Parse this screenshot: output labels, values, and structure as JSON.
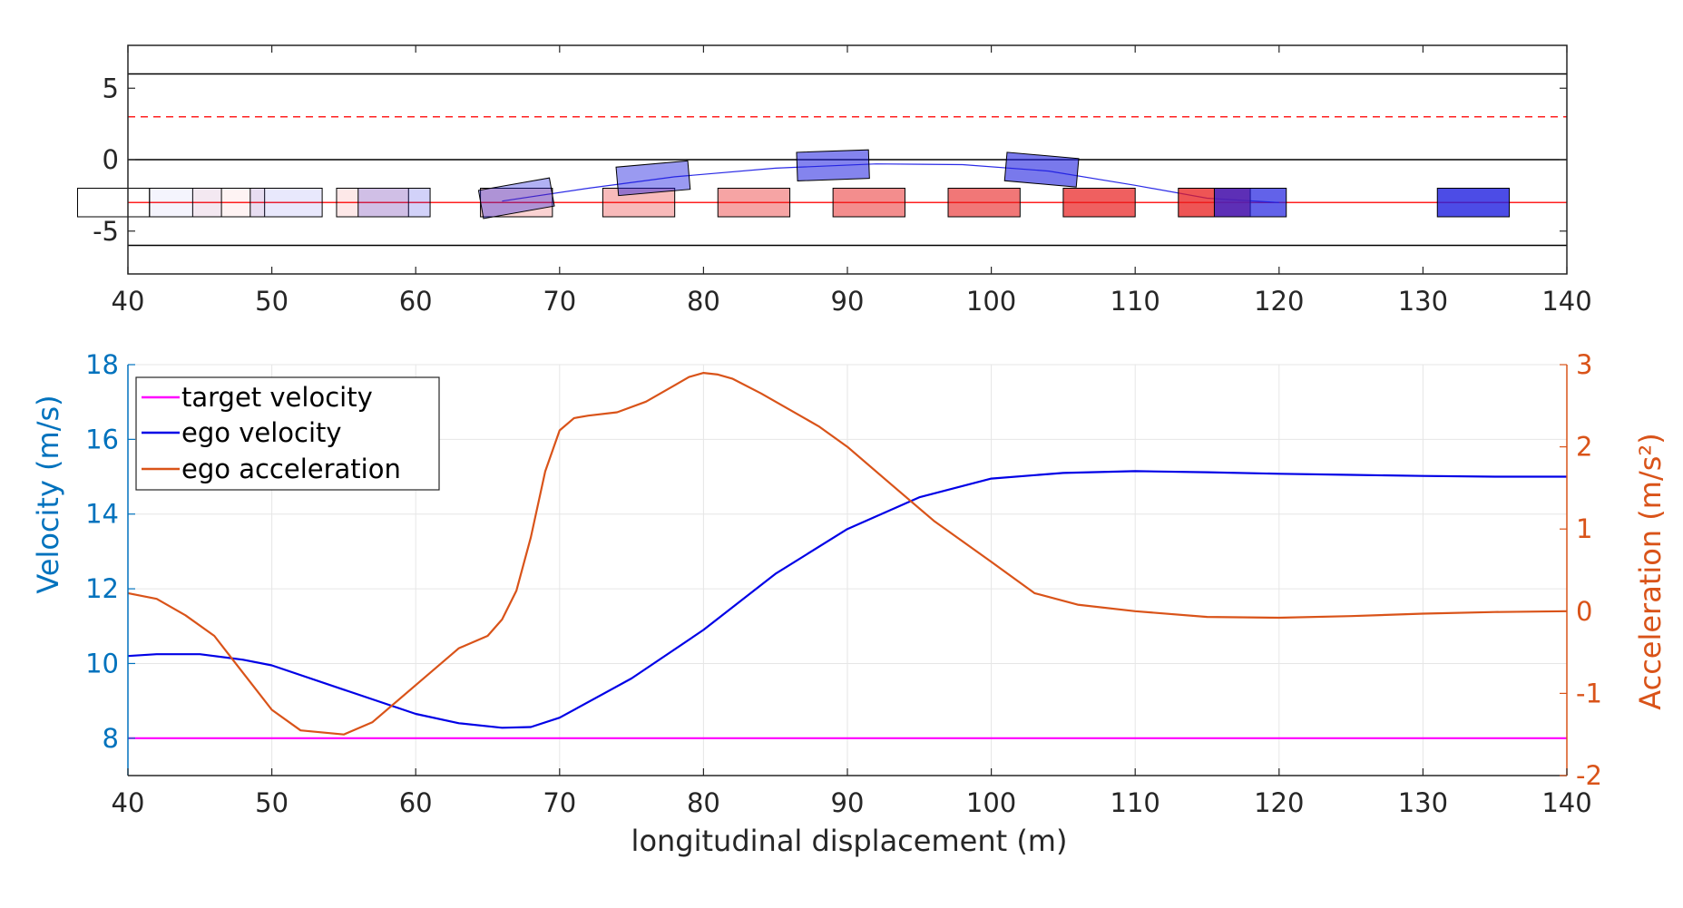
{
  "chart_data": [
    {
      "type": "scatter",
      "xlim": [
        40,
        140
      ],
      "ylim": [
        -8,
        8
      ],
      "x_ticks": [
        40,
        50,
        60,
        70,
        80,
        90,
        100,
        110,
        120,
        130,
        140
      ],
      "y_ticks": [
        -5,
        0,
        5
      ],
      "x_tick_labels": [
        "40",
        "50",
        "60",
        "70",
        "80",
        "90",
        "100",
        "110",
        "120",
        "130",
        "140"
      ],
      "y_tick_labels": [
        "-5",
        "0",
        "5"
      ],
      "grid": false,
      "road_boundaries": [
        -6,
        0,
        6
      ],
      "target_lane_y": -3,
      "reference_dashed_y": 3,
      "ego_path": [
        [
          66,
          -2.9
        ],
        [
          72,
          -2.0
        ],
        [
          78,
          -1.2
        ],
        [
          85,
          -0.6
        ],
        [
          92,
          -0.3
        ],
        [
          98,
          -0.35
        ],
        [
          104,
          -0.8
        ],
        [
          110,
          -1.8
        ],
        [
          115,
          -2.7
        ],
        [
          120,
          -3.0
        ]
      ],
      "ego_vehicle": {
        "color": "#1f1fe0",
        "length": 5,
        "width": 2,
        "poses": [
          {
            "x": 44,
            "y": -3,
            "heading_deg": 0,
            "alpha": 0.05
          },
          {
            "x": 51,
            "y": -3,
            "heading_deg": 0,
            "alpha": 0.1
          },
          {
            "x": 58.5,
            "y": -3,
            "heading_deg": 0,
            "alpha": 0.2
          },
          {
            "x": 67,
            "y": -2.7,
            "heading_deg": 10,
            "alpha": 0.35
          },
          {
            "x": 76.5,
            "y": -1.3,
            "heading_deg": 5,
            "alpha": 0.45
          },
          {
            "x": 89,
            "y": -0.4,
            "heading_deg": 2,
            "alpha": 0.55
          },
          {
            "x": 103.5,
            "y": -0.7,
            "heading_deg": -5,
            "alpha": 0.6
          },
          {
            "x": 118,
            "y": -3,
            "heading_deg": 0,
            "alpha": 0.7
          },
          {
            "x": 133.5,
            "y": -3,
            "heading_deg": 0,
            "alpha": 0.8
          }
        ]
      },
      "lead_vehicle": {
        "color": "#e81c1c",
        "length": 5,
        "width": 2,
        "poses": [
          {
            "x": 39,
            "y": -3,
            "alpha": 0.0
          },
          {
            "x": 47,
            "y": -3,
            "alpha": 0.05
          },
          {
            "x": 57,
            "y": -3,
            "alpha": 0.1
          },
          {
            "x": 67,
            "y": -3,
            "alpha": 0.2
          },
          {
            "x": 75.5,
            "y": -3,
            "alpha": 0.3
          },
          {
            "x": 83.5,
            "y": -3,
            "alpha": 0.4
          },
          {
            "x": 91.5,
            "y": -3,
            "alpha": 0.5
          },
          {
            "x": 99.5,
            "y": -3,
            "alpha": 0.6
          },
          {
            "x": 107.5,
            "y": -3,
            "alpha": 0.7
          },
          {
            "x": 115.5,
            "y": -3,
            "alpha": 0.75
          }
        ]
      }
    },
    {
      "type": "line",
      "xlabel": "longitudinal displacement (m)",
      "ylabel": "Velocity (m/s)",
      "ylabel_right": "Acceleration (m/s²)",
      "xlim": [
        40,
        140
      ],
      "ylim": [
        7,
        18
      ],
      "ylim_right": [
        -2,
        3
      ],
      "x_ticks": [
        40,
        50,
        60,
        70,
        80,
        90,
        100,
        110,
        120,
        130,
        140
      ],
      "x_tick_labels": [
        "40",
        "50",
        "60",
        "70",
        "80",
        "90",
        "100",
        "110",
        "120",
        "130",
        "140"
      ],
      "y_ticks": [
        8,
        10,
        12,
        14,
        16,
        18
      ],
      "y_tick_labels": [
        "8",
        "10",
        "12",
        "14",
        "16",
        "18"
      ],
      "y_ticks_right": [
        -2,
        -1,
        0,
        1,
        2,
        3
      ],
      "y_tick_labels_right": [
        "-2",
        "-1",
        "0",
        "1",
        "2",
        "3"
      ],
      "grid": true,
      "legend_position": "top-left",
      "colors": {
        "left_axis": "#0072BD",
        "right_axis": "#D95319",
        "grid": "#e6e6e6"
      },
      "series": [
        {
          "name": "target velocity",
          "axis": "left",
          "color": "#ff00ff",
          "x": [
            40,
            140
          ],
          "y": [
            8,
            8
          ]
        },
        {
          "name": "ego velocity",
          "axis": "left",
          "color": "#0000e6",
          "x": [
            40,
            42,
            45,
            48,
            50,
            55,
            60,
            63,
            66,
            68,
            70,
            75,
            80,
            85,
            90,
            95,
            100,
            105,
            110,
            115,
            120,
            125,
            130,
            135,
            140
          ],
          "y": [
            10.2,
            10.25,
            10.25,
            10.1,
            9.95,
            9.3,
            8.65,
            8.4,
            8.28,
            8.3,
            8.55,
            9.6,
            10.9,
            12.4,
            13.6,
            14.45,
            14.95,
            15.1,
            15.15,
            15.12,
            15.08,
            15.05,
            15.02,
            15.0,
            15.0
          ]
        },
        {
          "name": "ego acceleration",
          "axis": "right",
          "color": "#D95319",
          "x": [
            40,
            42,
            44,
            46,
            48,
            50,
            52,
            55,
            57,
            60,
            63,
            65,
            66,
            67,
            68,
            69,
            70,
            71,
            72,
            74,
            76,
            78,
            79,
            80,
            81,
            82,
            84,
            86,
            88,
            90,
            93,
            96,
            100,
            103,
            106,
            110,
            115,
            120,
            125,
            130,
            135,
            140
          ],
          "y": [
            0.22,
            0.15,
            -0.05,
            -0.3,
            -0.75,
            -1.2,
            -1.45,
            -1.5,
            -1.35,
            -0.9,
            -0.45,
            -0.3,
            -0.1,
            0.25,
            0.9,
            1.7,
            2.2,
            2.35,
            2.38,
            2.42,
            2.55,
            2.75,
            2.85,
            2.9,
            2.88,
            2.83,
            2.65,
            2.45,
            2.25,
            2.0,
            1.55,
            1.1,
            0.6,
            0.22,
            0.08,
            0.0,
            -0.07,
            -0.08,
            -0.06,
            -0.03,
            -0.01,
            0.0
          ]
        }
      ]
    }
  ]
}
